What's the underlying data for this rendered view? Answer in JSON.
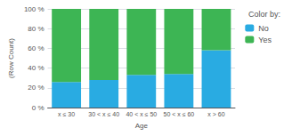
{
  "chart_data": {
    "type": "bar",
    "stacked": true,
    "xlabel": "Age",
    "ylabel": "(Row Count)",
    "legend_title": "Color by:",
    "categories": [
      "x ≤ 30",
      "30 < x ≤ 40",
      "40 < x ≤ 50",
      "50 < x ≤ 60",
      "x > 60"
    ],
    "series": [
      {
        "name": "No",
        "color": "#29abe2",
        "values": [
          26,
          28,
          33,
          34,
          58
        ]
      },
      {
        "name": "Yes",
        "color": "#3db554",
        "values": [
          74,
          72,
          67,
          66,
          42
        ]
      }
    ],
    "ylim": [
      0,
      100
    ],
    "yticks": [
      {
        "value": 0,
        "label": "0 %"
      },
      {
        "value": 20,
        "label": "20 %"
      },
      {
        "value": 40,
        "label": "40 %"
      },
      {
        "value": 60,
        "label": "60 %"
      },
      {
        "value": 80,
        "label": "80 %"
      },
      {
        "value": 100,
        "label": "100 %"
      }
    ],
    "grid": true,
    "legend": "right"
  }
}
